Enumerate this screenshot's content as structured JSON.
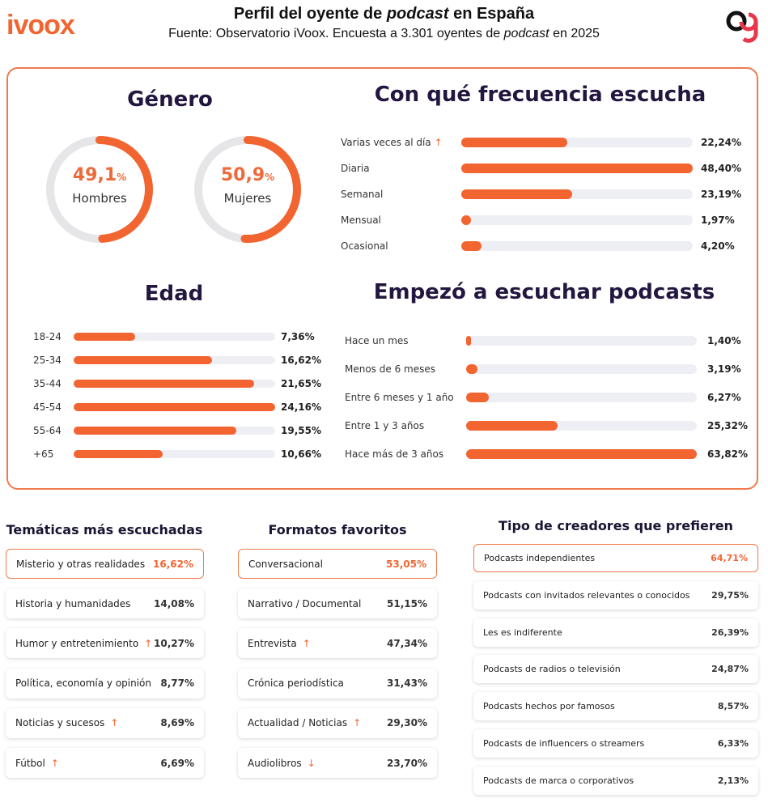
{
  "header": {
    "logo": "ivoox",
    "title_pre": "Perfil del oyente de ",
    "title_em": "podcast",
    "title_post": " en España",
    "subtitle_pre": "Fuente: Observatorio iVoox. Encuesta a 3.301 oyentes de ",
    "subtitle_em": "podcast",
    "subtitle_post": " en 2025"
  },
  "colors": {
    "accent": "#f26430",
    "track": "#eeeef5",
    "ring_bg": "#e6e6e9",
    "title_dark": "#23163f"
  },
  "chart_data": [
    {
      "type": "pie",
      "title": "Género",
      "categories": [
        "Hombres",
        "Mujeres"
      ],
      "values": [
        49.1,
        50.9
      ],
      "value_labels": [
        "49,1",
        "50,9"
      ],
      "unit": "%"
    },
    {
      "type": "bar",
      "title": "Con qué frecuencia escucha",
      "categories": [
        "Varias veces al día",
        "Diaria",
        "Semanal",
        "Mensual",
        "Ocasional"
      ],
      "values": [
        22.24,
        48.4,
        23.19,
        1.97,
        4.2
      ],
      "value_labels": [
        "22,24%",
        "48,40%",
        "23,19%",
        "1,97%",
        "4,20%"
      ],
      "trend": [
        "up",
        "",
        "",
        "",
        ""
      ]
    },
    {
      "type": "bar",
      "title": "Edad",
      "categories": [
        "18-24",
        "25-34",
        "35-44",
        "45-54",
        "55-64",
        "+65"
      ],
      "values": [
        7.36,
        16.62,
        21.65,
        24.16,
        19.55,
        10.66
      ],
      "value_labels": [
        "7,36%",
        "16,62%",
        "21,65%",
        "24,16%",
        "19,55%",
        "10,66%"
      ]
    },
    {
      "type": "bar",
      "title": "Empezó a escuchar podcasts",
      "categories": [
        "Hace un mes",
        "Menos de 6 meses",
        "Entre 6 meses y 1 año",
        "Entre 1 y 3 años",
        "Hace más de 3 años"
      ],
      "values": [
        1.4,
        3.19,
        6.27,
        25.32,
        63.82
      ],
      "value_labels": [
        "1,40%",
        "3,19%",
        "6,27%",
        "25,32%",
        "63,82%"
      ]
    },
    {
      "type": "table",
      "title": "Temáticas más escuchadas",
      "categories": [
        "Misterio y otras realidades",
        "Historia y humanidades",
        "Humor y entretenimiento",
        "Política, economía y opinión",
        "Noticias y sucesos",
        "Fútbol"
      ],
      "values": [
        16.62,
        14.08,
        10.27,
        8.77,
        8.69,
        6.69
      ],
      "value_labels": [
        "16,62%",
        "14,08%",
        "10,27%",
        "8,77%",
        "8,69%",
        "6,69%"
      ],
      "trend": [
        "",
        "",
        "up",
        "",
        "up",
        "up"
      ]
    },
    {
      "type": "table",
      "title": "Formatos favoritos",
      "categories": [
        "Conversacional",
        "Narrativo / Documental",
        "Entrevista",
        "Crónica periodística",
        "Actualidad / Noticias",
        "Audiolibros"
      ],
      "values": [
        53.05,
        51.15,
        47.34,
        31.43,
        29.3,
        23.7
      ],
      "value_labels": [
        "53,05%",
        "51,15%",
        "47,34%",
        "31,43%",
        "29,30%",
        "23,70%"
      ],
      "trend": [
        "",
        "",
        "up",
        "",
        "up",
        "down"
      ]
    },
    {
      "type": "table",
      "title": "Tipo de creadores que prefieren",
      "categories": [
        "Podcasts independientes",
        "Podcasts con invitados relevantes o conocidos",
        "Les es indiferente",
        "Podcasts de radios o televisión",
        "Podcasts hechos por famosos",
        "Podcasts de influencers o streamers",
        "Podcasts de marca o corporativos"
      ],
      "values": [
        64.71,
        29.75,
        26.39,
        24.87,
        8.57,
        6.33,
        2.13
      ],
      "value_labels": [
        "64,71%",
        "29,75%",
        "26,39%",
        "24,87%",
        "8,57%",
        "6,33%",
        "2,13%"
      ],
      "trend": [
        "",
        "",
        "",
        "",
        "",
        "",
        ""
      ]
    }
  ]
}
